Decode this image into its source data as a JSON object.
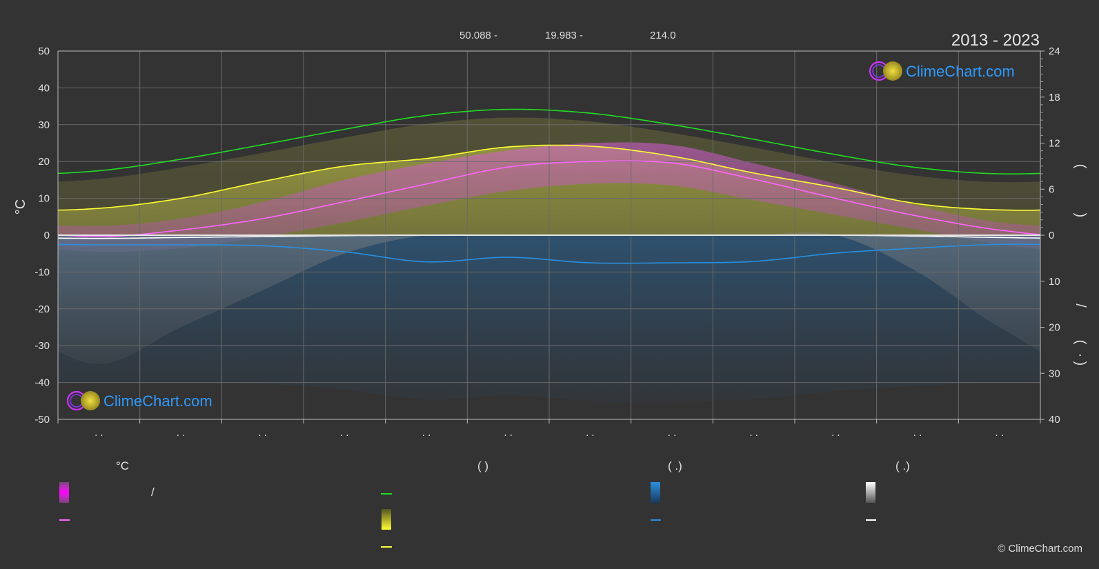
{
  "header": {
    "lat_text": "50.088 -",
    "lon_text": "19.983 -",
    "elev_text": "214.0",
    "years": "2013 - 2023"
  },
  "brand": {
    "name": "ClimeChart.com",
    "copyright": "© ClimeChart.com"
  },
  "legend": {
    "group_temp_title": "°C",
    "group_sun_title": "(          )",
    "group_rain_title": "(   .)",
    "group_snow_title": "(   .)",
    "slash": "/"
  },
  "colors": {
    "background": "#333333",
    "daylight": "#22dd22",
    "sunshine": "#ffff33",
    "temp_avg": "#ff66ff",
    "temp_range": "#ff00ff",
    "rain": "#2a8fe0",
    "snow": "#ffffff",
    "brand": "#2e9bff"
  },
  "chart_data": {
    "type": "line",
    "left_axis": {
      "label": "°C",
      "ticks": [
        50,
        40,
        30,
        20,
        10,
        0,
        -10,
        -20,
        -30,
        -40,
        -50
      ],
      "range": [
        -50,
        50
      ]
    },
    "right_axis_top": {
      "ticks": [
        24,
        18,
        12,
        6,
        0
      ],
      "range": [
        0,
        24
      ]
    },
    "right_axis_bottom": {
      "ticks": [
        0,
        10,
        20,
        30,
        40
      ],
      "range": [
        0,
        40
      ]
    },
    "right_axis_glyphs": [
      "(",
      ")",
      "/",
      "(",
      "·",
      ")"
    ],
    "month_labels": [
      ". .",
      ". .",
      ". .",
      ". .",
      ". .",
      ". .",
      ". .",
      ". .",
      ". .",
      ". .",
      ". .",
      ". ."
    ],
    "series": [
      {
        "key": "daylight",
        "axis": "right_top",
        "values": [
          8.4,
          9.9,
          11.8,
          13.8,
          15.6,
          16.4,
          15.9,
          14.4,
          12.5,
          10.5,
          8.8,
          8.0
        ]
      },
      {
        "key": "sunshine",
        "axis": "right_top",
        "values": [
          3.5,
          4.8,
          7.0,
          9.0,
          10.0,
          11.5,
          11.6,
          10.3,
          8.1,
          6.2,
          4.1,
          3.3
        ]
      },
      {
        "key": "temp_avg",
        "axis": "left",
        "values": [
          -0.4,
          1.4,
          4.5,
          9.1,
          13.9,
          18.5,
          20.0,
          19.6,
          15.2,
          10.0,
          5.2,
          1.4
        ]
      },
      {
        "key": "rain",
        "axis": "right_bottom",
        "values": [
          2.1,
          2.1,
          2.3,
          3.6,
          5.8,
          4.8,
          6.0,
          6.0,
          5.7,
          3.9,
          2.8,
          2.0
        ]
      },
      {
        "key": "snow",
        "axis": "right_bottom",
        "values": [
          0.7,
          0.5,
          0.3,
          0.1,
          0.0,
          0.0,
          0.0,
          0.0,
          0.0,
          0.0,
          0.2,
          0.5
        ]
      }
    ],
    "temp_band": {
      "max": [
        2.5,
        4.5,
        9.0,
        15.0,
        19.5,
        23.0,
        25.0,
        24.5,
        19.5,
        14.0,
        8.0,
        3.5
      ],
      "min": [
        -4.5,
        -3.5,
        -0.5,
        3.5,
        8.0,
        12.0,
        14.0,
        13.5,
        9.5,
        5.5,
        1.5,
        -2.5
      ]
    }
  }
}
